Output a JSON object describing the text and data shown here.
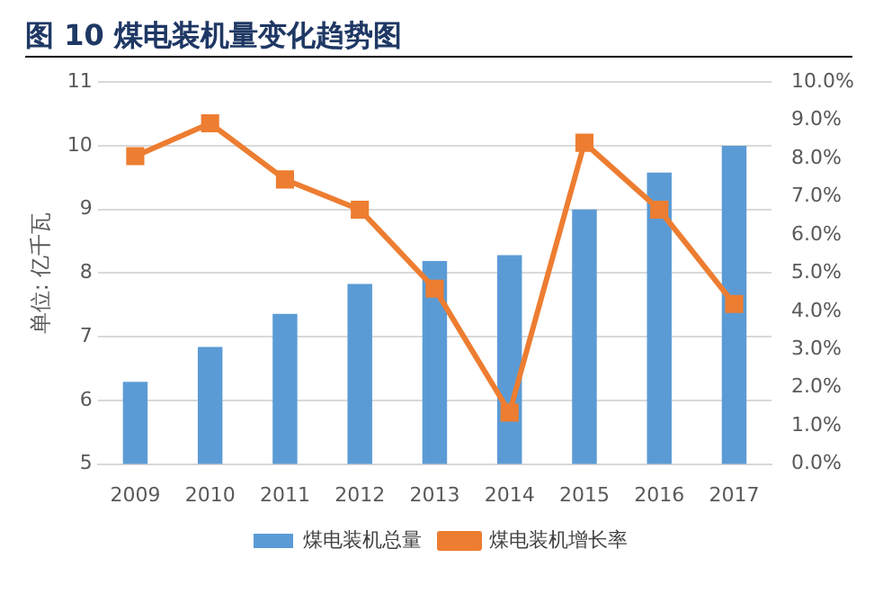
{
  "chart_data": {
    "type": "bar",
    "title": "图 10 煤电装机量变化趋势图",
    "ylabel": "单位: 亿千瓦",
    "categories": [
      "2009",
      "2010",
      "2011",
      "2012",
      "2013",
      "2014",
      "2015",
      "2016",
      "2017"
    ],
    "series": [
      {
        "name": "煤电装机总量",
        "color": "#5b9bd5",
        "values": [
          6.29,
          6.84,
          7.36,
          7.83,
          8.19,
          8.28,
          9.0,
          9.58,
          10.0
        ]
      },
      {
        "name": "煤电装机增长率",
        "type": "line",
        "axis": "y2",
        "color": "#ed7d31",
        "values": [
          8.06,
          8.92,
          7.45,
          6.66,
          4.59,
          1.35,
          8.41,
          6.66,
          4.19
        ]
      }
    ],
    "ylim": [
      5,
      11
    ],
    "yticks": [
      5,
      6,
      7,
      8,
      9,
      10,
      11
    ],
    "y2lim": [
      0,
      10
    ],
    "y2ticks": [
      {
        "value": 0,
        "label": "0.0%"
      },
      {
        "value": 1,
        "label": "1.0%"
      },
      {
        "value": 2,
        "label": "2.0%"
      },
      {
        "value": 3,
        "label": "3.0%"
      },
      {
        "value": 4,
        "label": "4.0%"
      },
      {
        "value": 5,
        "label": "5.0%"
      },
      {
        "value": 6,
        "label": "6.0%"
      },
      {
        "value": 7,
        "label": "7.0%"
      },
      {
        "value": 8,
        "label": "8.0%"
      },
      {
        "value": 9,
        "label": "9.0%"
      },
      {
        "value": 10,
        "label": "10.0%"
      }
    ],
    "grid": "y",
    "legend": "bottom",
    "marker": "square",
    "line_style": "solid"
  }
}
